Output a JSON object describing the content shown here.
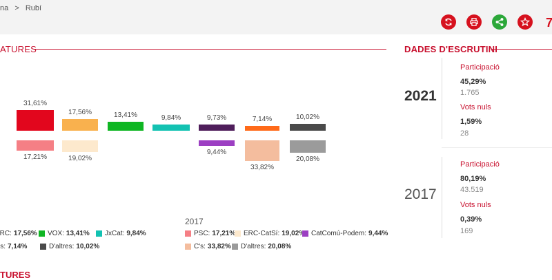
{
  "breadcrumb": {
    "part1": "na",
    "sep": ">",
    "current": "Rubí"
  },
  "toolbar": {
    "cut_text": "7"
  },
  "sections": {
    "left_title": "ATURES",
    "right_title": "DADES D'ESCRUTINI",
    "bottom_title": "TURES"
  },
  "chart_data": {
    "type": "bar",
    "categories": [
      "",
      "",
      "",
      "",
      "",
      "",
      ""
    ],
    "series": [
      {
        "name": "2021",
        "values": [
          31.61,
          17.56,
          13.41,
          9.84,
          9.73,
          7.14,
          10.02
        ],
        "labels": [
          "31,61%",
          "17,56%",
          "13,41%",
          "9,84%",
          "9,73%",
          "7,14%",
          "10,02%"
        ],
        "colors": [
          "#e2061d",
          "#f9b14e",
          "#0fb623",
          "#13c2b2",
          "#4f1e5b",
          "#ff6a19",
          "#4a4a4a"
        ]
      },
      {
        "name": "2017",
        "values": [
          17.21,
          19.02,
          null,
          null,
          9.44,
          33.82,
          20.08
        ],
        "labels": [
          "17,21%",
          "19,02%",
          "",
          "",
          "9,44%",
          "33,82%",
          "20,08%"
        ],
        "colors": [
          "#f57f85",
          "#fde9cd",
          "",
          "",
          "#9c3fc2",
          "#f4bd9e",
          "#9b9b9b"
        ]
      }
    ]
  },
  "legend": {
    "year": "2017",
    "items": [
      {
        "label": "ERC:",
        "value": "17,56%",
        "color": "#e2061d"
      },
      {
        "label": "VOX:",
        "value": "13,41%",
        "color": "#0fb623"
      },
      {
        "label": "JxCat:",
        "value": "9,84%",
        "color": "#13c2b2"
      },
      {
        "label": "Cs:",
        "value": "7,14%",
        "color": "#ff6a19"
      },
      {
        "label": "D'altres:",
        "value": "10,02%",
        "color": "#4a4a4a"
      },
      {
        "label": "PSC:",
        "value": "17,21%",
        "color": "#f57f85"
      },
      {
        "label": "ERC-CatSí:",
        "value": "19,02%",
        "color": "#fde9cd"
      },
      {
        "label": "CatComú-Podem:",
        "value": "9,44%",
        "color": "#9c3fc2"
      },
      {
        "label": "C's:",
        "value": "33,82%",
        "color": "#f4bd9e"
      },
      {
        "label": "D'altres:",
        "value": "20,08%",
        "color": "#9b9b9b"
      }
    ]
  },
  "escrutini": [
    {
      "year": "2021",
      "participacio_label": "Participació",
      "participacio_pct": "45,29%",
      "participacio_num": "1.765",
      "nuls_label": "Vots nuls",
      "nuls_pct": "1,59%",
      "nuls_num": "28"
    },
    {
      "year": "2017",
      "participacio_label": "Participació",
      "participacio_pct": "80,19%",
      "participacio_num": "43.519",
      "nuls_label": "Vots nuls",
      "nuls_pct": "0,39%",
      "nuls_num": "169"
    }
  ]
}
